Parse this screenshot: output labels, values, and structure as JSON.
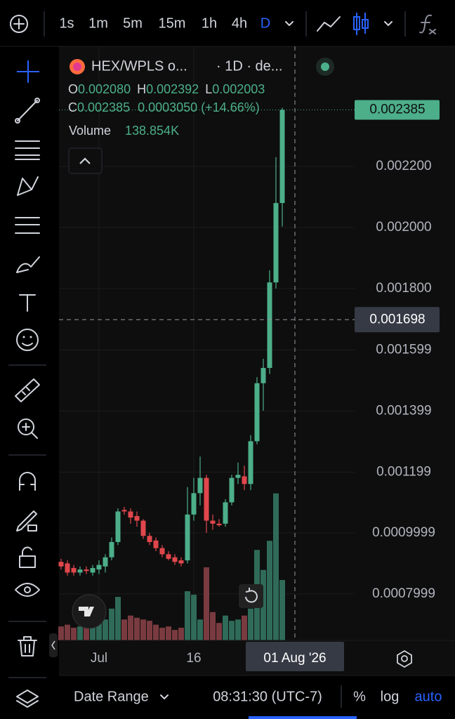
{
  "toolbar": {
    "intervals": [
      "1s",
      "1m",
      "5m",
      "15m",
      "1h",
      "4h",
      "D"
    ]
  },
  "legend": {
    "symbol": "HEX/WPLS o...",
    "interval": "· 1D · de...",
    "open_label": "O",
    "open": "0.002080",
    "high_label": "H",
    "high": "0.002392",
    "low_label": "L",
    "low": "0.002003",
    "close_label": "C",
    "close": "0.002385",
    "change": "0.0003050 (+14.66%)",
    "volume_label": "Volume",
    "volume": "138.854K"
  },
  "chart_data": {
    "type": "candlestick",
    "categories": [
      null,
      null,
      null,
      null,
      null,
      null,
      "Jul",
      null,
      null,
      null,
      null,
      null,
      null,
      null,
      null,
      null,
      null,
      null,
      null,
      null,
      null,
      "16",
      null,
      null,
      null,
      null,
      null,
      null,
      null,
      null,
      null,
      null,
      null,
      null,
      null,
      null
    ],
    "open": [
      0.000905,
      0.0009,
      0.000885,
      0.00087,
      0.00088,
      0.00087,
      0.00088,
      0.00089,
      0.00092,
      0.00097,
      0.001075,
      0.00107,
      0.001055,
      0.00104,
      0.00099,
      0.000975,
      0.00095,
      0.00093,
      0.00092,
      0.00091,
      0.00091,
      0.00106,
      0.00113,
      0.00118,
      0.00104,
      0.00103,
      0.00103,
      0.0011,
      0.00118,
      0.001185,
      0.00116,
      0.0013,
      0.00149,
      0.00154,
      0.00182,
      0.00208
    ],
    "high": [
      0.000915,
      0.00091,
      0.000895,
      0.00089,
      0.00089,
      0.000895,
      0.00091,
      0.00093,
      0.000985,
      0.00108,
      0.001085,
      0.00108,
      0.00107,
      0.001045,
      0.001,
      0.000985,
      0.00096,
      0.00094,
      0.00093,
      0.00092,
      0.00115,
      0.00118,
      0.00125,
      0.00119,
      0.00106,
      0.001045,
      0.00111,
      0.00119,
      0.00123,
      0.00122,
      0.00132,
      0.00151,
      0.00157,
      0.00186,
      0.00223,
      0.002392
    ],
    "low": [
      0.00088,
      0.00086,
      0.00086,
      0.00086,
      0.000865,
      0.00086,
      0.000865,
      0.00087,
      0.00091,
      0.00096,
      0.00106,
      0.00103,
      0.00102,
      0.00098,
      0.00096,
      0.00094,
      0.00092,
      0.00091,
      0.000895,
      0.00089,
      0.0009,
      0.00104,
      0.00109,
      0.001,
      0.00101,
      0.00102,
      0.00102,
      0.00109,
      0.00116,
      0.00114,
      0.00114,
      0.00129,
      0.0014,
      0.00152,
      0.0018,
      0.002003
    ],
    "close": [
      0.00089,
      0.00087,
      0.00087,
      0.00088,
      0.000875,
      0.000885,
      0.000895,
      0.00092,
      0.00097,
      0.00107,
      0.00107,
      0.00105,
      0.00104,
      0.00099,
      0.00097,
      0.00095,
      0.00093,
      0.000915,
      0.000905,
      0.0009,
      0.00106,
      0.00113,
      0.00118,
      0.00104,
      0.00103,
      0.001025,
      0.0011,
      0.00118,
      0.00119,
      0.00116,
      0.0013,
      0.00149,
      0.00154,
      0.00182,
      0.00208,
      0.002385
    ],
    "volume": [
      32000,
      36000,
      29000,
      32000,
      29000,
      36000,
      40000,
      48000,
      73000,
      100000,
      48000,
      57000,
      52000,
      48000,
      45000,
      36000,
      29000,
      32000,
      24000,
      29000,
      113000,
      105000,
      48000,
      168000,
      65000,
      40000,
      57000,
      45000,
      48000,
      57000,
      73000,
      208000,
      162000,
      229000,
      338000,
      138854
    ],
    "up_color": "#4caf8a",
    "down_color": "#e0474c",
    "volume_up_color": "#2f6b58",
    "volume_down_color": "#7a3b40",
    "ylim": [
      0.000648,
      0.002593
    ],
    "volume_lim": [
      0,
      1366000
    ],
    "yticks": [
      {
        "value": 0.0022,
        "label": "0.002200"
      },
      {
        "value": 0.002,
        "label": "0.002000"
      },
      {
        "value": 0.0018,
        "label": "0.001800"
      },
      {
        "value": 0.001599,
        "label": "0.001599"
      },
      {
        "value": 0.001399,
        "label": "0.001399"
      },
      {
        "value": 0.001199,
        "label": "0.001199"
      },
      {
        "value": 0.0009999,
        "label": "0.0009999"
      },
      {
        "value": 0.0007999,
        "label": "0.0007999"
      }
    ],
    "grid": true,
    "last_price": {
      "value": 0.002385,
      "label": "0.002385"
    },
    "crosshair": {
      "price": {
        "value": 0.001698,
        "label": "0.001698"
      },
      "date": "01 Aug '26"
    }
  },
  "bottom_bar": {
    "date_range": "Date Range",
    "time": "08:31:30 (UTC-7)",
    "percent": "%",
    "log": "log",
    "auto": "auto"
  }
}
